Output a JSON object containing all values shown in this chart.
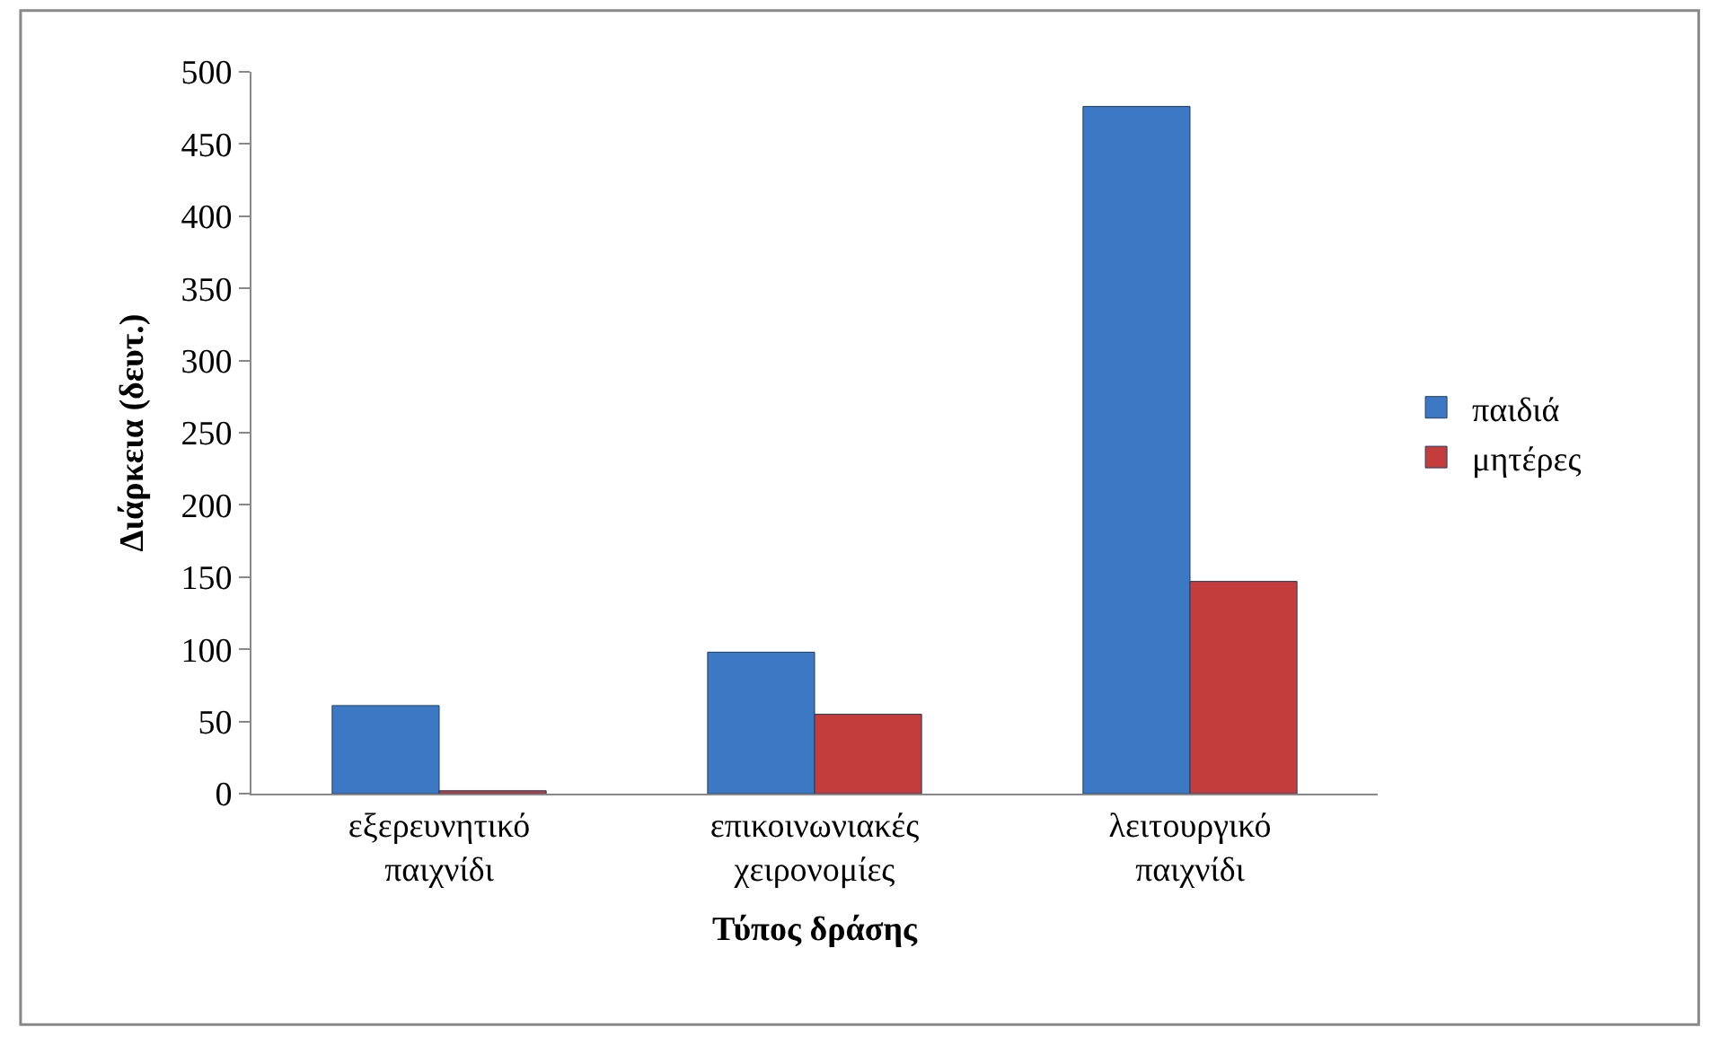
{
  "chart_data": {
    "type": "bar",
    "xlabel": "Τύπος δράσης",
    "ylabel": "Διάρκεια (δευτ.)",
    "categories": [
      "εξερευνητικό παιχνίδι",
      "επικοινωνιακές χειρονομίες",
      "λειτουργικό παιχνίδι"
    ],
    "series": [
      {
        "name": "παιδιά",
        "color": "#3d78c4",
        "values": [
          61,
          98,
          476
        ]
      },
      {
        "name": "μητέρες",
        "color": "#c43c3c",
        "values": [
          2,
          55,
          147
        ]
      }
    ],
    "ylim": [
      0,
      500
    ],
    "yticks": [
      0,
      50,
      100,
      150,
      200,
      250,
      300,
      350,
      400,
      450,
      500
    ],
    "legend": "right"
  }
}
